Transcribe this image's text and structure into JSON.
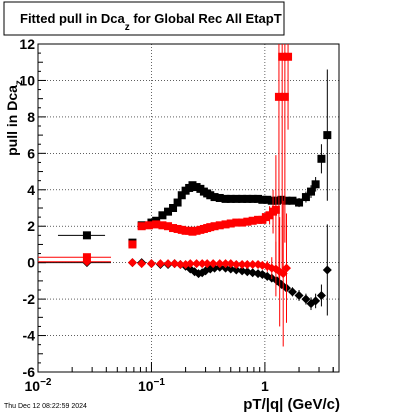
{
  "chart_data": {
    "type": "scatter",
    "title": {
      "main": "Fitted pull in Dca",
      "sub": "z",
      "rest": " for Global Rec All EtapT"
    },
    "xlabel": "pT/|q| (GeV/c)",
    "ylabel": "pull in Dca",
    "ylabel_sub": "z",
    "xscale": "log",
    "xlim": [
      0.01,
      4.5
    ],
    "ylim": [
      -6,
      12
    ],
    "grid": true,
    "xticks": [
      {
        "value": 0.01,
        "base": "10",
        "exp": "−2"
      },
      {
        "value": 0.1,
        "base": "10",
        "exp": "−1"
      },
      {
        "value": 1,
        "base": "1",
        "exp": ""
      }
    ],
    "yticks": [
      -6,
      -4,
      -2,
      0,
      2,
      4,
      6,
      8,
      10,
      12
    ],
    "timestamp": "Thu Dec 12 08:22:59 2024",
    "series": [
      {
        "name": "",
        "marker": "square",
        "color": "#000000",
        "points": [
          {
            "x": 0.027,
            "y": 1.5,
            "xerr": 0.012,
            "yerr": 0.05
          },
          {
            "x": 0.068,
            "y": 1.1,
            "xerr": 0.004,
            "yerr": 0.1
          },
          {
            "x": 0.082,
            "y": 2.05,
            "yerr": 0.1
          },
          {
            "x": 0.1,
            "y": 2.2
          },
          {
            "x": 0.11,
            "y": 2.3
          },
          {
            "x": 0.125,
            "y": 2.6
          },
          {
            "x": 0.14,
            "y": 2.8
          },
          {
            "x": 0.155,
            "y": 3.0
          },
          {
            "x": 0.17,
            "y": 3.3
          },
          {
            "x": 0.185,
            "y": 3.7
          },
          {
            "x": 0.2,
            "y": 3.95
          },
          {
            "x": 0.215,
            "y": 4.1
          },
          {
            "x": 0.23,
            "y": 4.25
          },
          {
            "x": 0.25,
            "y": 4.15
          },
          {
            "x": 0.27,
            "y": 4.05
          },
          {
            "x": 0.29,
            "y": 3.9
          },
          {
            "x": 0.31,
            "y": 3.8
          },
          {
            "x": 0.33,
            "y": 3.7
          },
          {
            "x": 0.36,
            "y": 3.6
          },
          {
            "x": 0.4,
            "y": 3.55
          },
          {
            "x": 0.45,
            "y": 3.5
          },
          {
            "x": 0.5,
            "y": 3.5
          },
          {
            "x": 0.56,
            "y": 3.5
          },
          {
            "x": 0.63,
            "y": 3.5
          },
          {
            "x": 0.7,
            "y": 3.5
          },
          {
            "x": 0.78,
            "y": 3.5
          },
          {
            "x": 0.87,
            "y": 3.5
          },
          {
            "x": 0.95,
            "y": 3.45
          },
          {
            "x": 1.05,
            "y": 3.45
          },
          {
            "x": 1.15,
            "y": 3.4
          },
          {
            "x": 1.28,
            "y": 3.4
          },
          {
            "x": 1.4,
            "y": 3.45,
            "yerr": 0.2
          },
          {
            "x": 1.55,
            "y": 3.4,
            "yerr": 0.2
          },
          {
            "x": 1.75,
            "y": 3.4,
            "yerr": 0.2
          },
          {
            "x": 2.0,
            "y": 3.3,
            "yerr": 0.25
          },
          {
            "x": 2.3,
            "y": 3.6,
            "yerr": 0.3
          },
          {
            "x": 2.55,
            "y": 3.9,
            "yerr": 0.35
          },
          {
            "x": 2.8,
            "y": 4.3,
            "yerr": 0.4
          },
          {
            "x": 3.15,
            "y": 5.7,
            "yerr": 0.8
          },
          {
            "x": 3.55,
            "y": 7.0,
            "yerr": 3.6
          }
        ]
      },
      {
        "name": "",
        "marker": "square",
        "color": "#ff0000",
        "points": [
          {
            "x": 0.027,
            "y": 0.3,
            "xerr": 0.017,
            "yerr": 0.05
          },
          {
            "x": 0.068,
            "y": 1.0,
            "xerr": 0.004,
            "yerr": 0.1
          },
          {
            "x": 0.082,
            "y": 2.0,
            "yerr": 0.1
          },
          {
            "x": 0.095,
            "y": 2.05
          },
          {
            "x": 0.11,
            "y": 2.1
          },
          {
            "x": 0.125,
            "y": 2.05
          },
          {
            "x": 0.14,
            "y": 2.0
          },
          {
            "x": 0.155,
            "y": 1.9
          },
          {
            "x": 0.17,
            "y": 1.85
          },
          {
            "x": 0.185,
            "y": 1.8
          },
          {
            "x": 0.2,
            "y": 1.75
          },
          {
            "x": 0.215,
            "y": 1.75
          },
          {
            "x": 0.23,
            "y": 1.7
          },
          {
            "x": 0.25,
            "y": 1.75
          },
          {
            "x": 0.27,
            "y": 1.8
          },
          {
            "x": 0.29,
            "y": 1.85
          },
          {
            "x": 0.31,
            "y": 1.9
          },
          {
            "x": 0.33,
            "y": 1.95
          },
          {
            "x": 0.36,
            "y": 2.0
          },
          {
            "x": 0.4,
            "y": 2.05
          },
          {
            "x": 0.45,
            "y": 2.1
          },
          {
            "x": 0.5,
            "y": 2.15
          },
          {
            "x": 0.56,
            "y": 2.2
          },
          {
            "x": 0.63,
            "y": 2.2
          },
          {
            "x": 0.7,
            "y": 2.25
          },
          {
            "x": 0.78,
            "y": 2.3
          },
          {
            "x": 0.87,
            "y": 2.35
          },
          {
            "x": 0.95,
            "y": 2.35
          },
          {
            "x": 1.02,
            "y": 2.5,
            "yerr": 0.3
          },
          {
            "x": 1.1,
            "y": 2.6,
            "yerr": 0.5
          },
          {
            "x": 1.18,
            "y": 2.8,
            "yerr": 1.2
          },
          {
            "x": 1.25,
            "y": 2.9,
            "yerr": 3.0
          },
          {
            "x": 1.33,
            "y": 9.1,
            "yerr": 10.0
          },
          {
            "x": 1.42,
            "y": 11.3,
            "yerr": 12.0
          },
          {
            "x": 1.5,
            "y": 9.1,
            "yerr": 8.0
          },
          {
            "x": 1.6,
            "y": 11.3,
            "yerr": 4.0
          }
        ]
      },
      {
        "name": "",
        "marker": "diamond",
        "color": "#000000",
        "points": [
          {
            "x": 0.027,
            "y": 0.0,
            "xerr": 0.017,
            "yerr": 0.05
          },
          {
            "x": 0.068,
            "y": 0.0,
            "xerr": 0.004
          },
          {
            "x": 0.082,
            "y": 0.0
          },
          {
            "x": 0.1,
            "y": -0.05
          },
          {
            "x": 0.12,
            "y": -0.1
          },
          {
            "x": 0.14,
            "y": -0.1
          },
          {
            "x": 0.16,
            "y": -0.05
          },
          {
            "x": 0.18,
            "y": -0.1
          },
          {
            "x": 0.2,
            "y": -0.2
          },
          {
            "x": 0.22,
            "y": -0.35
          },
          {
            "x": 0.24,
            "y": -0.5
          },
          {
            "x": 0.26,
            "y": -0.6
          },
          {
            "x": 0.28,
            "y": -0.55
          },
          {
            "x": 0.3,
            "y": -0.45
          },
          {
            "x": 0.33,
            "y": -0.35
          },
          {
            "x": 0.36,
            "y": -0.3
          },
          {
            "x": 0.4,
            "y": -0.25
          },
          {
            "x": 0.45,
            "y": -0.3
          },
          {
            "x": 0.5,
            "y": -0.35
          },
          {
            "x": 0.56,
            "y": -0.4
          },
          {
            "x": 0.63,
            "y": -0.45
          },
          {
            "x": 0.7,
            "y": -0.5
          },
          {
            "x": 0.78,
            "y": -0.55
          },
          {
            "x": 0.87,
            "y": -0.6
          },
          {
            "x": 0.95,
            "y": -0.65
          },
          {
            "x": 1.05,
            "y": -0.75
          },
          {
            "x": 1.15,
            "y": -0.85
          },
          {
            "x": 1.28,
            "y": -1.0,
            "yerr": 0.2
          },
          {
            "x": 1.4,
            "y": -1.2,
            "yerr": 0.2
          },
          {
            "x": 1.55,
            "y": -1.4,
            "yerr": 0.2
          },
          {
            "x": 1.75,
            "y": -1.6,
            "yerr": 0.25
          },
          {
            "x": 2.0,
            "y": -1.8,
            "yerr": 0.3
          },
          {
            "x": 2.3,
            "y": -2.0,
            "yerr": 0.3
          },
          {
            "x": 2.55,
            "y": -2.25,
            "yerr": 0.35
          },
          {
            "x": 2.8,
            "y": -2.1,
            "yerr": 0.4
          },
          {
            "x": 3.15,
            "y": -1.8,
            "yerr": 0.6
          },
          {
            "x": 3.55,
            "y": -0.4,
            "yerr": 2.5
          }
        ]
      },
      {
        "name": "",
        "marker": "diamond",
        "color": "#ff0000",
        "points": [
          {
            "x": 0.027,
            "y": 0.05,
            "xerr": 0.017,
            "yerr": 0.05
          },
          {
            "x": 0.068,
            "y": 0.0,
            "xerr": 0.004
          },
          {
            "x": 0.082,
            "y": -0.05
          },
          {
            "x": 0.1,
            "y": -0.05
          },
          {
            "x": 0.12,
            "y": -0.05
          },
          {
            "x": 0.14,
            "y": -0.05
          },
          {
            "x": 0.16,
            "y": -0.05
          },
          {
            "x": 0.18,
            "y": -0.1
          },
          {
            "x": 0.2,
            "y": -0.1
          },
          {
            "x": 0.22,
            "y": -0.05
          },
          {
            "x": 0.25,
            "y": -0.05
          },
          {
            "x": 0.28,
            "y": -0.05
          },
          {
            "x": 0.31,
            "y": -0.05
          },
          {
            "x": 0.35,
            "y": -0.05
          },
          {
            "x": 0.4,
            "y": -0.05
          },
          {
            "x": 0.45,
            "y": -0.05
          },
          {
            "x": 0.5,
            "y": -0.05
          },
          {
            "x": 0.56,
            "y": -0.1
          },
          {
            "x": 0.63,
            "y": -0.1
          },
          {
            "x": 0.7,
            "y": -0.1
          },
          {
            "x": 0.78,
            "y": -0.1
          },
          {
            "x": 0.87,
            "y": -0.1
          },
          {
            "x": 0.95,
            "y": -0.15
          },
          {
            "x": 1.05,
            "y": -0.2,
            "yerr": 0.3
          },
          {
            "x": 1.15,
            "y": -0.3,
            "yerr": 0.6
          },
          {
            "x": 1.25,
            "y": -0.35,
            "yerr": 1.5
          },
          {
            "x": 1.35,
            "y": -0.5,
            "yerr": 3.0
          },
          {
            "x": 1.45,
            "y": -0.6,
            "yerr": 4.0
          },
          {
            "x": 1.55,
            "y": -0.3,
            "yerr": 3.0
          }
        ]
      }
    ]
  }
}
